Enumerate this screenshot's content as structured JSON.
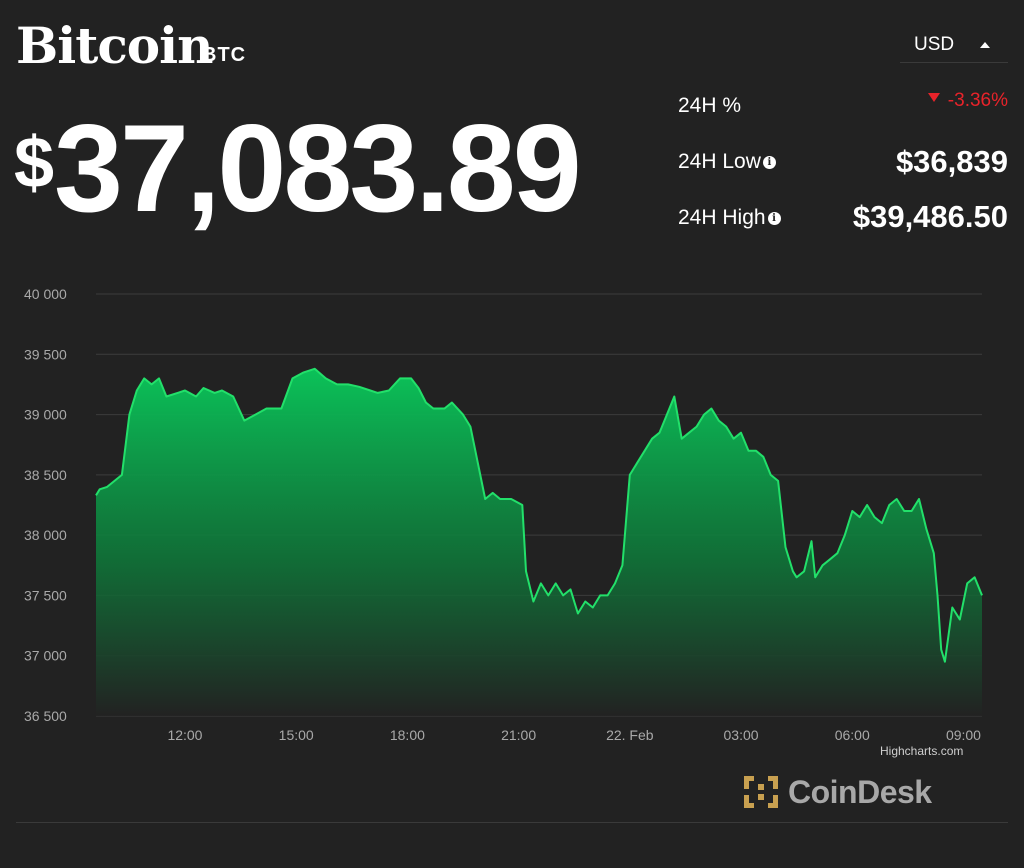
{
  "coin": {
    "name": "Bitcoin",
    "symbol": "BTC"
  },
  "price": {
    "currency_symbol": "$",
    "value": "37,083.89"
  },
  "currency_select": {
    "value": "USD"
  },
  "stats": {
    "change_label": "24H %",
    "change_value": "-3.36%",
    "low_label": "24H Low",
    "low_value": "$36,839",
    "high_label": "24H High",
    "high_value": "$39,486.50",
    "down_color": "#e8232a",
    "info_icon": "info-icon"
  },
  "chart_data": {
    "type": "area",
    "ylim": [
      36500,
      40000
    ],
    "yticks": [
      36500,
      37000,
      37500,
      38000,
      38500,
      39000,
      39500,
      40000
    ],
    "ytick_labels": [
      "36 500",
      "37 000",
      "37 500",
      "38 000",
      "38 500",
      "39 000",
      "39 500",
      "40 000"
    ],
    "xlim": [
      9.6,
      33.5
    ],
    "xticks": [
      12,
      15,
      18,
      21,
      24,
      27,
      30,
      33
    ],
    "xtick_labels": [
      "12:00",
      "15:00",
      "18:00",
      "21:00",
      "22. Feb",
      "03:00",
      "06:00",
      "09:00"
    ],
    "line_color": "#22e06a",
    "series": [
      {
        "values": [
          [
            9.6,
            38330
          ],
          [
            9.7,
            38380
          ],
          [
            9.9,
            38400
          ],
          [
            10.1,
            38450
          ],
          [
            10.3,
            38500
          ],
          [
            10.5,
            39000
          ],
          [
            10.7,
            39200
          ],
          [
            10.9,
            39300
          ],
          [
            11.1,
            39250
          ],
          [
            11.3,
            39300
          ],
          [
            11.5,
            39150
          ],
          [
            11.8,
            39180
          ],
          [
            12.0,
            39200
          ],
          [
            12.3,
            39150
          ],
          [
            12.5,
            39220
          ],
          [
            12.8,
            39180
          ],
          [
            13.0,
            39200
          ],
          [
            13.3,
            39150
          ],
          [
            13.6,
            38950
          ],
          [
            13.9,
            39000
          ],
          [
            14.2,
            39050
          ],
          [
            14.6,
            39050
          ],
          [
            14.9,
            39300
          ],
          [
            15.2,
            39350
          ],
          [
            15.5,
            39380
          ],
          [
            15.8,
            39300
          ],
          [
            16.1,
            39250
          ],
          [
            16.4,
            39250
          ],
          [
            16.7,
            39230
          ],
          [
            17.0,
            39200
          ],
          [
            17.2,
            39180
          ],
          [
            17.5,
            39200
          ],
          [
            17.8,
            39300
          ],
          [
            18.1,
            39300
          ],
          [
            18.3,
            39220
          ],
          [
            18.5,
            39100
          ],
          [
            18.7,
            39050
          ],
          [
            19.0,
            39050
          ],
          [
            19.2,
            39100
          ],
          [
            19.5,
            39000
          ],
          [
            19.7,
            38900
          ],
          [
            19.9,
            38600
          ],
          [
            20.1,
            38300
          ],
          [
            20.3,
            38350
          ],
          [
            20.5,
            38300
          ],
          [
            20.8,
            38300
          ],
          [
            21.1,
            38250
          ],
          [
            21.2,
            37700
          ],
          [
            21.4,
            37450
          ],
          [
            21.6,
            37600
          ],
          [
            21.8,
            37500
          ],
          [
            22.0,
            37600
          ],
          [
            22.2,
            37500
          ],
          [
            22.4,
            37550
          ],
          [
            22.6,
            37350
          ],
          [
            22.8,
            37450
          ],
          [
            23.0,
            37400
          ],
          [
            23.2,
            37500
          ],
          [
            23.4,
            37500
          ],
          [
            23.6,
            37600
          ],
          [
            23.8,
            37750
          ],
          [
            24.0,
            38500
          ],
          [
            24.2,
            38600
          ],
          [
            24.4,
            38700
          ],
          [
            24.6,
            38800
          ],
          [
            24.8,
            38850
          ],
          [
            25.0,
            39000
          ],
          [
            25.2,
            39150
          ],
          [
            25.4,
            38800
          ],
          [
            25.6,
            38850
          ],
          [
            25.8,
            38900
          ],
          [
            26.0,
            39000
          ],
          [
            26.2,
            39050
          ],
          [
            26.4,
            38950
          ],
          [
            26.6,
            38900
          ],
          [
            26.8,
            38800
          ],
          [
            27.0,
            38850
          ],
          [
            27.2,
            38700
          ],
          [
            27.4,
            38700
          ],
          [
            27.6,
            38650
          ],
          [
            27.8,
            38500
          ],
          [
            28.0,
            38450
          ],
          [
            28.2,
            37900
          ],
          [
            28.4,
            37700
          ],
          [
            28.5,
            37650
          ],
          [
            28.7,
            37700
          ],
          [
            28.9,
            37950
          ],
          [
            29.0,
            37650
          ],
          [
            29.2,
            37750
          ],
          [
            29.4,
            37800
          ],
          [
            29.6,
            37850
          ],
          [
            29.8,
            38000
          ],
          [
            30.0,
            38200
          ],
          [
            30.2,
            38150
          ],
          [
            30.4,
            38250
          ],
          [
            30.6,
            38150
          ],
          [
            30.8,
            38100
          ],
          [
            31.0,
            38250
          ],
          [
            31.2,
            38300
          ],
          [
            31.4,
            38200
          ],
          [
            31.6,
            38200
          ],
          [
            31.8,
            38300
          ],
          [
            32.0,
            38050
          ],
          [
            32.2,
            37850
          ],
          [
            32.3,
            37500
          ],
          [
            32.4,
            37050
          ],
          [
            32.5,
            36950
          ],
          [
            32.7,
            37400
          ],
          [
            32.9,
            37300
          ],
          [
            33.1,
            37600
          ],
          [
            33.3,
            37650
          ],
          [
            33.5,
            37500
          ]
        ]
      }
    ]
  },
  "credits": "Highcharts.com",
  "brand": {
    "name": "CoinDesk",
    "logo_color": "#c8a050"
  }
}
